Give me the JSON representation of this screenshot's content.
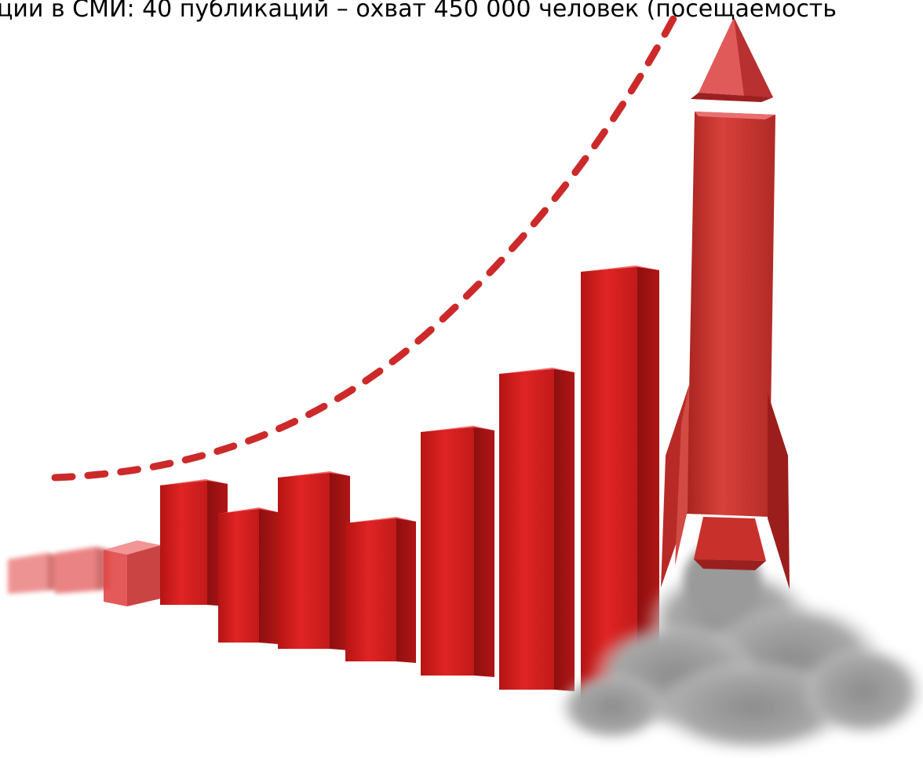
{
  "caption": "ции в СМИ: 40 публикаций – охват 450 000 человек (посещаемость",
  "illustration": {
    "subject": "rocket-growth-bar-chart",
    "colors": {
      "bar_front": "#d81e1e",
      "bar_side": "#9e1212",
      "bar_top": "#f06a6a",
      "rocket_body": "#c9302c",
      "rocket_nose": "#e05a5a",
      "rocket_fin": "#b82a26",
      "smoke": "#9a9a9a",
      "dash_line": "#cc2a2a"
    }
  }
}
